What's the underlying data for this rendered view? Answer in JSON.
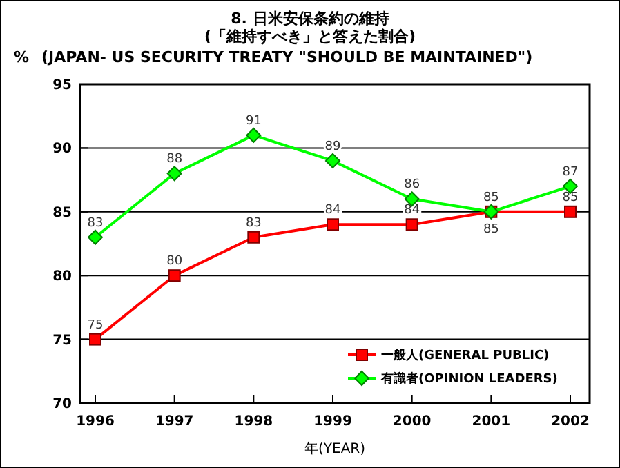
{
  "chart_data": {
    "type": "line",
    "title": "8. 日米安保条約の維持\n(「維持すべき」と答えた割合)",
    "subtitle": "(JAPAN- US SECURITY TREATY \"SHOULD BE MAINTAINED\")",
    "ylabel": "%",
    "xlabel": "年(YEAR)",
    "categories": [
      "1996",
      "1997",
      "1998",
      "1999",
      "2000",
      "2001",
      "2002"
    ],
    "ylim": [
      70,
      95
    ],
    "yticks": [
      70,
      75,
      80,
      85,
      90,
      95
    ],
    "grid": "y",
    "legend": "bottom right",
    "data_labels": true,
    "series": [
      {
        "name": "一般人(GENERAL PUBLIC)",
        "color": "#ff0000",
        "marker": "square",
        "values": [
          75,
          80,
          83,
          84,
          84,
          85,
          85
        ]
      },
      {
        "name": "有識者(OPINION LEADERS)",
        "color": "#00ff00",
        "marker": "diamond",
        "values": [
          83,
          88,
          91,
          89,
          86,
          85,
          87
        ]
      }
    ]
  }
}
